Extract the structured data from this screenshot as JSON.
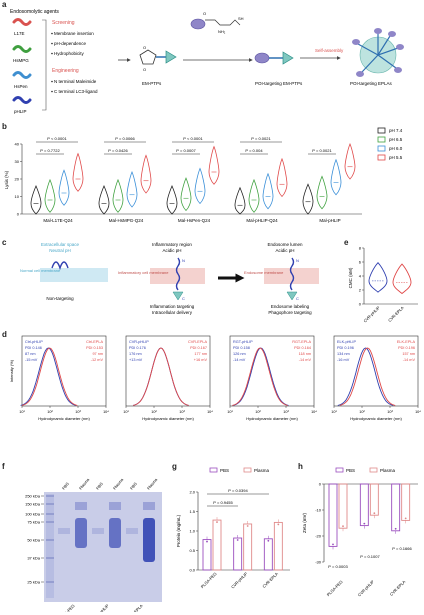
{
  "panel_labels": {
    "a": "a",
    "b": "b",
    "c": "c",
    "d": "d",
    "e": "e",
    "f": "f",
    "g": "g",
    "h": "h"
  },
  "panel_a": {
    "header": "Endosomolytic agents",
    "agents": [
      {
        "label": "L17E",
        "color": "#d9524f"
      },
      {
        "label": "HsMPG",
        "color": "#3f9f3f"
      },
      {
        "label": "HsPen",
        "color": "#3f8fd0"
      },
      {
        "label": "pHLIP",
        "color": "#3040b0"
      }
    ],
    "screening_title": "Screening",
    "screening_items": [
      "Membrane insertion",
      "pH-dependence",
      "Hydrophobicity"
    ],
    "engineering_title": "Engineering",
    "engineering_items": [
      "N terminal Maleimide",
      "C terminal LC3-ligand"
    ],
    "em_ptps": "EM-PTPs",
    "poi_em_ptps": "POI-targeting EM-PTPs",
    "poi_eplas": "POI-targeting EPLAs",
    "self_assembly": "Self-assembly",
    "nh2": "NH₂",
    "sh": "SH",
    "o": "O"
  },
  "panel_b": {
    "ylabel": "Lysis (%)",
    "yticks": [
      "0",
      "10",
      "20",
      "30",
      "40"
    ],
    "groups": [
      {
        "label": "Mal-L17E-Q24",
        "p_top": "P < 0.0001",
        "p_bottom": "P = 0.7722"
      },
      {
        "label": "Mal-HsMPG-Q24",
        "p_top": "P = 0.0066",
        "p_bottom": "P = 0.0426"
      },
      {
        "label": "Mal-HsPen-Q24",
        "p_top": "P < 0.0001",
        "p_bottom": "P = 0.0007"
      },
      {
        "label": "Mal-pHLIP-Q24",
        "p_top": "P = 0.0021",
        "p_bottom": "P = 0.004"
      },
      {
        "label": "Mal-pHLIP",
        "p_top": "",
        "p_bottom": "P = 0.0021"
      }
    ],
    "legend": [
      {
        "label": "pH 7.4",
        "color": "#222222"
      },
      {
        "label": "pH 6.5",
        "color": "#3fa13f"
      },
      {
        "label": "pH 6.0",
        "color": "#3a8fd8"
      },
      {
        "label": "pH 5.5",
        "color": "#e04848"
      }
    ]
  },
  "panel_c": {
    "left_title1": "Extracellular space",
    "left_title2": "Neutral pH",
    "left_membrane": "Normal cell membrane",
    "left_caption": "Non-targeting",
    "mid_title1": "Inflammatory region",
    "mid_title2": "Acidic pH",
    "mid_membrane": "Inflammatory cell membrane",
    "mid_caption1": "Inflammation targeting",
    "mid_caption2": "Intracellular delivery",
    "right_title1": "Endosome lumen",
    "right_title2": "Acidic pH",
    "right_membrane": "Endosome membrane",
    "right_caption1": "Endosome labeling",
    "right_caption2": "Phagophore targeting",
    "n": "N",
    "c": "C"
  },
  "panel_d": {
    "ylabel": "Intensity (%)",
    "xlabel": "Hydrodynamic diameter (nm)",
    "plots": [
      {
        "name1": "Ctrl-pHLIP",
        "pdi1": "PDI 0.146",
        "size1": "87 nm",
        "zeta1": "-15 mV",
        "name2": "Ctrl-EPLA",
        "pdi2": "PDI 0.153",
        "size2": "97 nm",
        "zeta2": "-12 mV"
      },
      {
        "name1": "CVR-pHLIP",
        "pdi1": "PDI 0.176",
        "size1": "176 nm",
        "zeta1": "+13 mV",
        "name2": "CVR-EPLA",
        "pdi2": "PDI 0.167",
        "size2": "177 nm",
        "zeta2": "+16 mV"
      },
      {
        "name1": "RGT-pHLIP",
        "pdi1": "PDI 0.158",
        "size1": "126 nm",
        "zeta1": "-14 mV",
        "name2": "RGT-EPLA",
        "pdi2": "PDI 0.164",
        "size2": "118 nm",
        "zeta2": "-14 mV"
      },
      {
        "name1": "ELK-pHLIP",
        "pdi1": "PDI 0.196",
        "size1": "134 nm",
        "zeta1": "-16 mV",
        "name2": "ELK-EPLA",
        "pdi2": "PDI 0.196",
        "size2": "157 nm",
        "zeta2": "-14 mV"
      }
    ],
    "xticks": [
      "10¹",
      "10²",
      "10³",
      "10⁴"
    ]
  },
  "panel_e": {
    "ylabel": "CMC (nM)",
    "yticks": [
      "0",
      "2",
      "4",
      "6",
      "8"
    ],
    "xlabels": [
      "CVR-pHLIP",
      "CVR-EPLA"
    ]
  },
  "panel_f": {
    "ladder": [
      "250 kDa",
      "150 kDa",
      "100 kDa",
      "75 kDa",
      "50 kDa",
      "37 kDa",
      "25 kDa"
    ],
    "lane_labels": [
      "PBS",
      "Plasma",
      "PBS",
      "Plasma",
      "PBS",
      "Plasma"
    ],
    "groups": [
      "PLGA-PEG",
      "CVR-pHLIP",
      "CVR-EPLA"
    ]
  },
  "panel_g": {
    "legend": [
      "PBS",
      "Plasma"
    ],
    "ylabel": "Protein (mg/mL)",
    "yticks": [
      "0.0",
      "0.5",
      "1.0",
      "1.5",
      "2.0"
    ],
    "xlabels": [
      "PLGA-PEG",
      "CVR-pHLIP",
      "CVR-EPLA"
    ],
    "p1": "P = 0.0394",
    "p2": "P = 0.9455"
  },
  "panel_h": {
    "legend": [
      "PBS",
      "Plasma"
    ],
    "ylabel": "Zeta (mV)",
    "yticks": [
      "0",
      "-10",
      "-20",
      "-30"
    ],
    "xlabels": [
      "PLGA-PEG",
      "CVR-pHLIP",
      "CVR-EPLA"
    ],
    "p1": "P = 0.0003",
    "p2": "P = 0.1007",
    "p3": "P = 0.1666"
  },
  "chart_data": [
    {
      "type": "violin",
      "panel": "b",
      "ylabel": "Lysis (%)",
      "ylim": [
        0,
        40
      ],
      "categories": [
        "Mal-L17E-Q24",
        "Mal-HsMPG-Q24",
        "Mal-HsPen-Q24",
        "Mal-pHLIP-Q24",
        "Mal-pHLIP"
      ],
      "series": [
        {
          "name": "pH 7.4",
          "medians": [
            6,
            6,
            6,
            5,
            7
          ]
        },
        {
          "name": "pH 6.5",
          "medians": [
            8,
            8,
            9,
            8,
            10
          ]
        },
        {
          "name": "pH 6.0",
          "medians": [
            12,
            11,
            13,
            10,
            18
          ]
        },
        {
          "name": "pH 5.5",
          "medians": [
            20,
            19,
            24,
            17,
            27
          ]
        }
      ]
    },
    {
      "type": "line",
      "panel": "d",
      "xlabel": "Hydrodynamic diameter (nm)",
      "ylabel": "Intensity (%)",
      "log_x": true,
      "peaks": [
        [
          87,
          97
        ],
        [
          176,
          177
        ],
        [
          126,
          118
        ],
        [
          134,
          157
        ]
      ]
    },
    {
      "type": "violin",
      "panel": "e",
      "ylabel": "CMC (nM)",
      "ylim": [
        0,
        8
      ],
      "categories": [
        "CVR-pHLIP",
        "CVR-EPLA"
      ],
      "medians": [
        3.3,
        3.1
      ]
    },
    {
      "type": "bar",
      "panel": "g",
      "ylabel": "Protein (mg/mL)",
      "ylim": [
        0,
        2.0
      ],
      "categories": [
        "PLGA-PEG",
        "CVR-pHLIP",
        "CVR-EPLA"
      ],
      "series": [
        {
          "name": "PBS",
          "values": [
            0.78,
            0.82,
            0.8
          ]
        },
        {
          "name": "Plasma",
          "values": [
            1.28,
            1.18,
            1.22
          ]
        }
      ]
    },
    {
      "type": "bar",
      "panel": "h",
      "ylabel": "Zeta (mV)",
      "ylim": [
        -30,
        0
      ],
      "categories": [
        "PLGA-PEG",
        "CVR-pHLIP",
        "CVR-EPLA"
      ],
      "series": [
        {
          "name": "PBS",
          "values": [
            -24,
            -16,
            -18
          ]
        },
        {
          "name": "Plasma",
          "values": [
            -17,
            -12,
            -14
          ]
        }
      ]
    }
  ]
}
